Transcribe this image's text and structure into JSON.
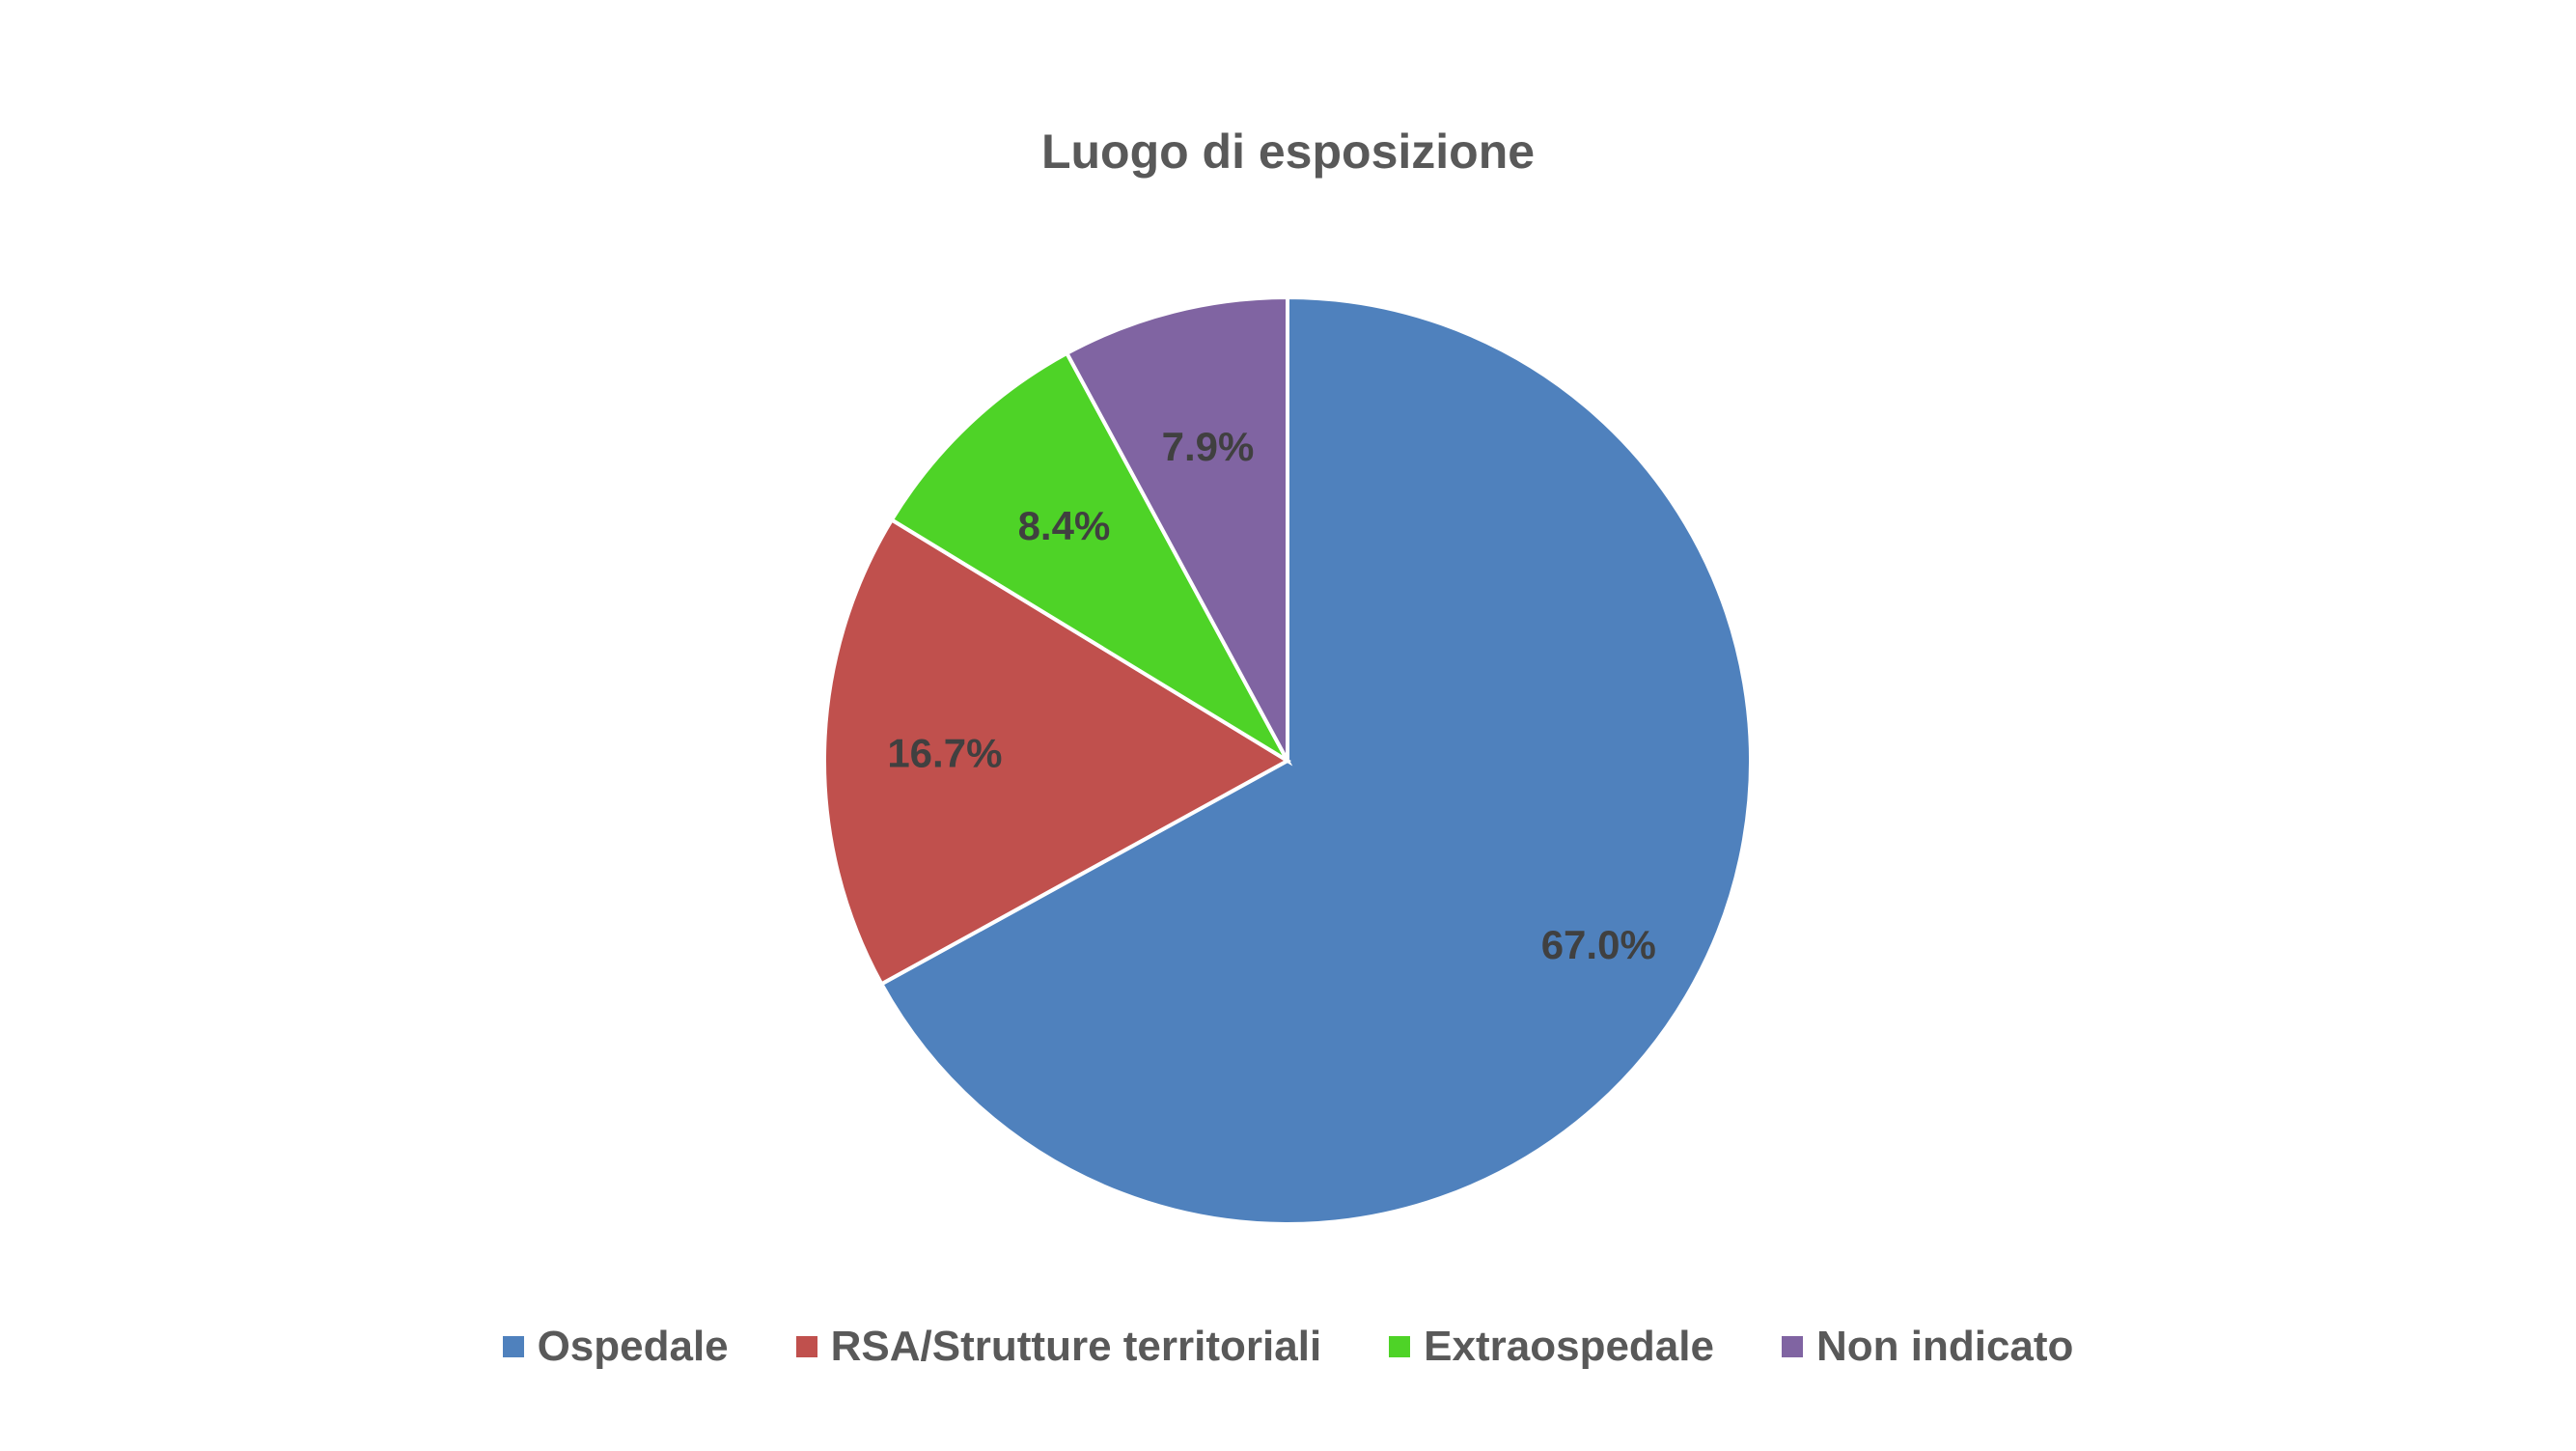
{
  "chart_data": {
    "type": "pie",
    "title": "Luogo di esposizione",
    "categories": [
      "Ospedale",
      "RSA/Strutture territoriali",
      "Extraospedale",
      "Non indicato"
    ],
    "values": [
      67.0,
      16.7,
      8.4,
      7.9
    ],
    "data_labels": [
      "67.0%",
      "16.7%",
      "8.4%",
      "7.9%"
    ],
    "colors": [
      "#4F81BD",
      "#C0504D",
      "#4ED327",
      "#8064A2"
    ],
    "legend_position": "bottom",
    "start_angle": "12 o'clock",
    "direction": "clockwise"
  }
}
